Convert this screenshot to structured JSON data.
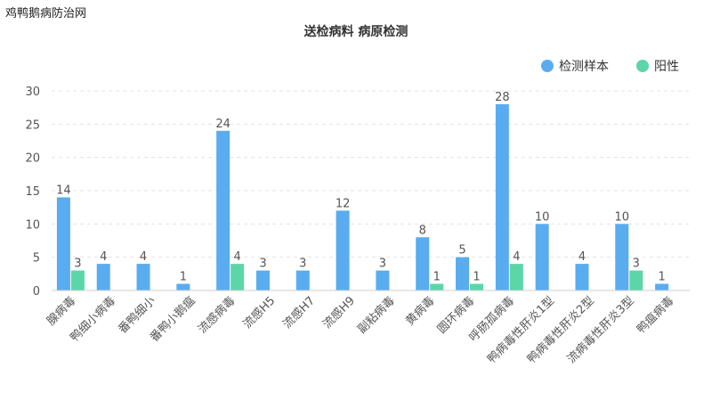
{
  "watermark": "鸡鸭鹅病防治网",
  "chart_data": {
    "type": "bar",
    "title": "送检病料 病原检测",
    "xlabel": "",
    "ylabel": "",
    "ylim": [
      0,
      30
    ],
    "yticks": [
      0,
      5,
      10,
      15,
      20,
      25,
      30
    ],
    "grid": true,
    "legend_position": "top-right",
    "categories": [
      "腺病毒",
      "鸭细小病毒",
      "番鸭细小",
      "番鸭小鹅瘟",
      "流感病毒",
      "流感H5",
      "流感H7",
      "流感H9",
      "副粘病毒",
      "黄病毒",
      "圆环病毒",
      "呼肠孤病毒",
      "鸭病毒性肝炎1型",
      "鸭病毒性肝炎2型",
      "流病毒性肝炎3型",
      "鸭瘟病毒"
    ],
    "series": [
      {
        "name": "检测样本",
        "color": "#5aacf0",
        "values": [
          14,
          4,
          4,
          1,
          24,
          3,
          3,
          12,
          3,
          8,
          5,
          28,
          10,
          4,
          10,
          1
        ]
      },
      {
        "name": "阳性",
        "color": "#5cd6a8",
        "values": [
          3,
          null,
          null,
          null,
          4,
          null,
          null,
          null,
          null,
          1,
          1,
          4,
          null,
          null,
          3,
          null
        ]
      }
    ]
  }
}
